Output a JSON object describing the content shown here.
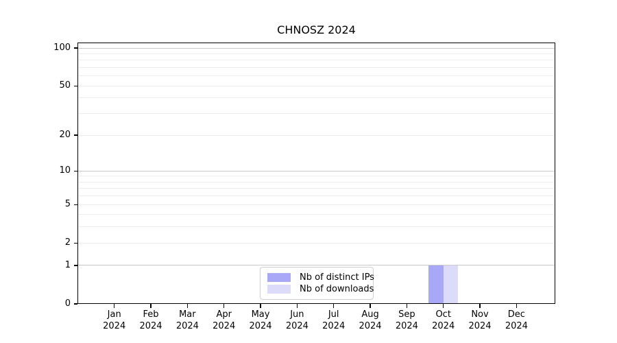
{
  "chart_data": {
    "type": "bar",
    "title": "CHNOSZ 2024",
    "x_months": [
      "Jan",
      "Feb",
      "Mar",
      "Apr",
      "May",
      "Jun",
      "Jul",
      "Aug",
      "Sep",
      "Oct",
      "Nov",
      "Dec"
    ],
    "x_year": "2024",
    "series": [
      {
        "name": "Nb of distinct IPs",
        "color": "#a8a8f6",
        "values": [
          0,
          0,
          0,
          0,
          0,
          0,
          0,
          0,
          0,
          1,
          0,
          0
        ]
      },
      {
        "name": "Nb of downloads",
        "color": "#dcdcfa",
        "values": [
          0,
          0,
          0,
          0,
          0,
          0,
          0,
          0,
          0,
          1,
          0,
          0
        ]
      }
    ],
    "y_scale": "log1p",
    "ylim": [
      0,
      110
    ],
    "y_tick_values": [
      0,
      1,
      2,
      5,
      10,
      20,
      50,
      100
    ],
    "y_tick_labels": [
      "0",
      "1",
      "2",
      "5",
      "10",
      "20",
      "50",
      "100"
    ],
    "grid_major_values": [
      1,
      10,
      100
    ],
    "grid_minor_values": [
      2,
      3,
      4,
      5,
      6,
      7,
      8,
      9,
      20,
      30,
      40,
      50,
      60,
      70,
      80,
      90
    ],
    "legend": {
      "position": "lower center",
      "entries": [
        "Nb of distinct IPs",
        "Nb of downloads"
      ]
    },
    "colors": {
      "grid_major": "#c9c9c9",
      "grid_minor": "#ededed",
      "frame": "#000000",
      "background": "#ffffff"
    }
  }
}
